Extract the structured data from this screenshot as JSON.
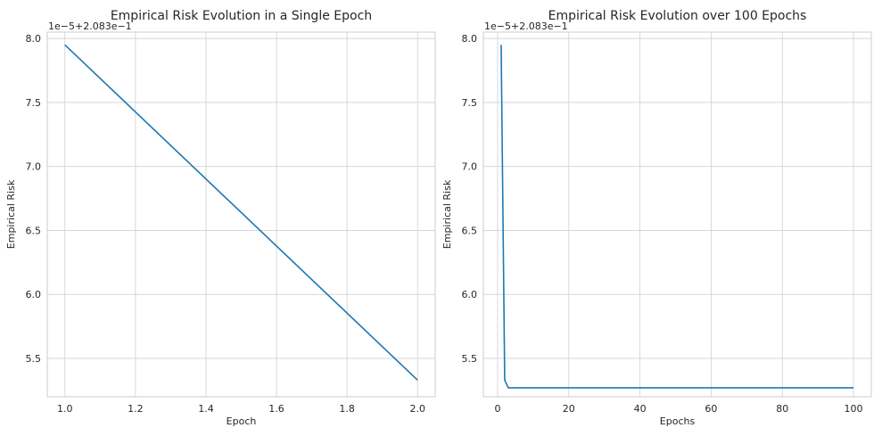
{
  "chart_data": [
    {
      "type": "line",
      "title": "Empirical Risk Evolution in a Single Epoch",
      "xlabel": "Epoch",
      "ylabel": "Empirical Risk",
      "offset_text": "1e−5+2.083e−1",
      "grid": true,
      "xlim": [
        0.95,
        2.05
      ],
      "ylim": [
        5.2,
        8.05
      ],
      "xticks": [
        1.0,
        1.2,
        1.4,
        1.6,
        1.8,
        2.0
      ],
      "xtick_labels": [
        "1.0",
        "1.2",
        "1.4",
        "1.6",
        "1.8",
        "2.0"
      ],
      "yticks": [
        5.5,
        6.0,
        6.5,
        7.0,
        7.5,
        8.0
      ],
      "ytick_labels": [
        "5.5",
        "6.0",
        "6.5",
        "7.0",
        "7.5",
        "8.0"
      ],
      "series": [
        {
          "x": [
            1,
            2
          ],
          "y": [
            7.95,
            5.33
          ]
        }
      ]
    },
    {
      "type": "line",
      "title": "Empirical Risk Evolution over 100 Epochs",
      "xlabel": "Epochs",
      "ylabel": "Empirical Risk",
      "offset_text": "1e−5+2.083e−1",
      "grid": true,
      "xlim": [
        -4,
        105
      ],
      "ylim": [
        5.2,
        8.05
      ],
      "xticks": [
        0,
        20,
        40,
        60,
        80,
        100
      ],
      "xtick_labels": [
        "0",
        "20",
        "40",
        "60",
        "80",
        "100"
      ],
      "yticks": [
        5.5,
        6.0,
        6.5,
        7.0,
        7.5,
        8.0
      ],
      "ytick_labels": [
        "5.5",
        "6.0",
        "6.5",
        "7.0",
        "7.5",
        "8.0"
      ],
      "series": [
        {
          "x": [
            1,
            2,
            3,
            100
          ],
          "y": [
            7.95,
            5.33,
            5.27,
            5.27
          ]
        }
      ]
    }
  ]
}
